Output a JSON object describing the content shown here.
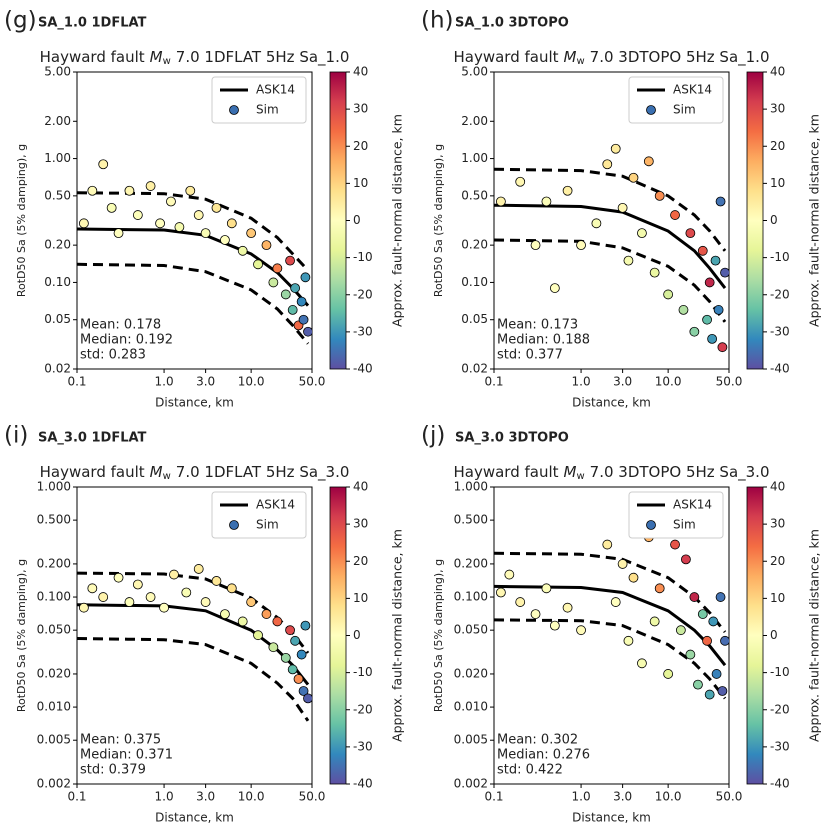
{
  "chart_data": [
    {
      "type": "scatter",
      "panel_label": "(g)",
      "panel_title": "SA_1.0 1DFLAT",
      "title_prefix": "Hayward  fault",
      "title_symbol": "M",
      "title_subscript": "w",
      "title_suffix": "7.0 1DFLAT 5Hz Sa_1.0",
      "xlabel": "Distance, km",
      "ylabel": "RotD50 Sa (5% damping), g",
      "colorbar_label": "Approx. fault-normal distance, km",
      "xscale": "log",
      "yscale": "log",
      "xlim": [
        0.1,
        50
      ],
      "xticks": [
        0.1,
        {
          "value": 1,
          "label": "1.0"
        },
        {
          "value": 3,
          "label": "3.0"
        },
        {
          "value": 10,
          "label": "10.0"
        },
        {
          "value": 50,
          "label": "50.0"
        }
      ],
      "ylim": [
        0.02,
        5
      ],
      "yticks": [
        0.02,
        0.05,
        {
          "value": 0.1,
          "label": "0.10"
        },
        {
          "value": 0.2,
          "label": "0.20"
        },
        {
          "value": 0.5,
          "label": "0.50"
        },
        {
          "value": 1,
          "label": "1.00"
        },
        {
          "value": 2,
          "label": "2.00"
        },
        {
          "value": 5,
          "label": "5.00"
        }
      ],
      "clim": [
        -40,
        40
      ],
      "cticks": [
        -40,
        -30,
        -20,
        -10,
        0,
        10,
        20,
        30,
        40
      ],
      "colormap": [
        "#5e4fa2",
        "#3288bd",
        "#66c2a5",
        "#abdda4",
        "#e6f598",
        "#ffffbf",
        "#fee08b",
        "#fdae61",
        "#f46d43",
        "#d53e4f",
        "#9e0142"
      ],
      "annotations": [
        "Mean: 0.178",
        "Median: 0.192",
        "std: 0.283"
      ],
      "legend": "upper right",
      "series": [
        {
          "name": "ASK14",
          "kind": "line",
          "color": "#000000",
          "x": [
            0.1,
            1,
            3,
            10,
            20,
            30,
            45
          ],
          "values": [
            0.27,
            0.265,
            0.24,
            0.17,
            0.12,
            0.09,
            0.065
          ]
        },
        {
          "kind": "line",
          "dash": true,
          "color": "#000000",
          "x": [
            0.1,
            1,
            3,
            10,
            20,
            30,
            45
          ],
          "values": [
            0.53,
            0.52,
            0.47,
            0.33,
            0.23,
            0.17,
            0.125
          ]
        },
        {
          "kind": "line",
          "dash": true,
          "color": "#000000",
          "x": [
            0.1,
            1,
            3,
            10,
            20,
            30,
            45
          ],
          "values": [
            0.14,
            0.137,
            0.122,
            0.087,
            0.061,
            0.045,
            0.032
          ]
        },
        {
          "name": "Sim",
          "kind": "scatter",
          "color": "#3a6fb0",
          "x": [
            0.12,
            0.15,
            0.2,
            0.25,
            0.3,
            0.4,
            0.5,
            0.7,
            0.9,
            1.2,
            1.5,
            2,
            2.5,
            3,
            4,
            5,
            6,
            8,
            10,
            12,
            15,
            18,
            20,
            25,
            28,
            30,
            32,
            35,
            38,
            40,
            42,
            45
          ],
          "values": [
            0.3,
            0.55,
            0.9,
            0.4,
            0.25,
            0.55,
            0.35,
            0.6,
            0.3,
            0.45,
            0.28,
            0.55,
            0.35,
            0.25,
            0.4,
            0.22,
            0.3,
            0.18,
            0.25,
            0.14,
            0.2,
            0.1,
            0.13,
            0.08,
            0.15,
            0.06,
            0.09,
            0.045,
            0.07,
            0.05,
            0.11,
            0.04
          ],
          "c": [
            2,
            1,
            3,
            -2,
            0,
            2,
            -1,
            4,
            0,
            1,
            -3,
            5,
            2,
            -2,
            6,
            0,
            8,
            -5,
            12,
            -8,
            15,
            -12,
            22,
            -18,
            30,
            -25,
            -28,
            25,
            -32,
            -35,
            -30,
            -38
          ]
        }
      ]
    },
    {
      "type": "scatter",
      "panel_label": "(h)",
      "panel_title": "SA_1.0 3DTOPO",
      "title_prefix": "Hayward  fault",
      "title_symbol": "M",
      "title_subscript": "w",
      "title_suffix": "7.0 3DTOPO 5Hz Sa_1.0",
      "xlabel": "Distance, km",
      "ylabel": "RotD50 Sa (5% damping), g",
      "colorbar_label": "Approx. fault-normal distance, km",
      "xscale": "log",
      "yscale": "log",
      "xlim": [
        0.1,
        50
      ],
      "xticks": [
        0.1,
        {
          "value": 1,
          "label": "1.0"
        },
        {
          "value": 3,
          "label": "3.0"
        },
        {
          "value": 10,
          "label": "10.0"
        },
        {
          "value": 50,
          "label": "50.0"
        }
      ],
      "ylim": [
        0.02,
        5
      ],
      "yticks": [
        0.02,
        0.05,
        {
          "value": 0.1,
          "label": "0.10"
        },
        {
          "value": 0.2,
          "label": "0.20"
        },
        {
          "value": 0.5,
          "label": "0.50"
        },
        {
          "value": 1,
          "label": "1.00"
        },
        {
          "value": 2,
          "label": "2.00"
        },
        {
          "value": 5,
          "label": "5.00"
        }
      ],
      "clim": [
        -40,
        40
      ],
      "cticks": [
        -40,
        -30,
        -20,
        -10,
        0,
        10,
        20,
        30,
        40
      ],
      "colormap": [
        "#5e4fa2",
        "#3288bd",
        "#66c2a5",
        "#abdda4",
        "#e6f598",
        "#ffffbf",
        "#fee08b",
        "#fdae61",
        "#f46d43",
        "#d53e4f",
        "#9e0142"
      ],
      "annotations": [
        "Mean: 0.173",
        "Median: 0.188",
        "std: 0.377"
      ],
      "legend": "upper right",
      "series": [
        {
          "name": "ASK14",
          "kind": "line",
          "color": "#000000",
          "x": [
            0.1,
            1,
            3,
            10,
            20,
            30,
            45
          ],
          "values": [
            0.42,
            0.41,
            0.37,
            0.26,
            0.18,
            0.13,
            0.09
          ]
        },
        {
          "kind": "line",
          "dash": true,
          "color": "#000000",
          "x": [
            0.1,
            1,
            3,
            10,
            20,
            30,
            45
          ],
          "values": [
            0.82,
            0.8,
            0.72,
            0.5,
            0.35,
            0.26,
            0.18
          ]
        },
        {
          "kind": "line",
          "dash": true,
          "color": "#000000",
          "x": [
            0.1,
            1,
            3,
            10,
            20,
            30,
            45
          ],
          "values": [
            0.22,
            0.215,
            0.19,
            0.135,
            0.095,
            0.07,
            0.048
          ]
        },
        {
          "name": "Sim",
          "kind": "scatter",
          "color": "#3a6fb0",
          "x": [
            0.12,
            0.2,
            0.3,
            0.4,
            0.5,
            0.7,
            1,
            1.5,
            2,
            2.5,
            3,
            3.5,
            4,
            5,
            6,
            7,
            8,
            10,
            12,
            15,
            18,
            20,
            25,
            28,
            30,
            32,
            35,
            38,
            40,
            42,
            45
          ],
          "values": [
            0.45,
            0.65,
            0.2,
            0.45,
            0.09,
            0.55,
            0.2,
            0.3,
            0.9,
            1.2,
            0.4,
            0.15,
            0.7,
            0.25,
            0.95,
            0.12,
            0.5,
            0.08,
            0.35,
            0.06,
            0.25,
            0.04,
            0.18,
            0.05,
            0.1,
            0.035,
            0.15,
            0.06,
            0.45,
            0.03,
            0.12
          ],
          "c": [
            3,
            2,
            0,
            -1,
            0,
            4,
            1,
            -2,
            6,
            5,
            2,
            -3,
            10,
            -4,
            15,
            -6,
            20,
            -10,
            25,
            -15,
            30,
            -20,
            28,
            -25,
            35,
            -30,
            -28,
            -33,
            -35,
            32,
            -38
          ]
        }
      ]
    },
    {
      "type": "scatter",
      "panel_label": "(i)",
      "panel_title": "SA_3.0 1DFLAT",
      "title_prefix": "Hayward  fault",
      "title_symbol": "M",
      "title_subscript": "w",
      "title_suffix": "7.0 1DFLAT 5Hz Sa_3.0",
      "xlabel": "Distance, km",
      "ylabel": "RotD50 Sa (5% damping), g",
      "colorbar_label": "Approx. fault-normal distance, km",
      "xscale": "log",
      "yscale": "log",
      "xlim": [
        0.1,
        50
      ],
      "xticks": [
        0.1,
        {
          "value": 1,
          "label": "1.0"
        },
        {
          "value": 3,
          "label": "3.0"
        },
        {
          "value": 10,
          "label": "10.0"
        },
        {
          "value": 50,
          "label": "50.0"
        }
      ],
      "ylim": [
        0.002,
        1
      ],
      "yticks": [
        0.002,
        0.005,
        {
          "value": 0.01,
          "label": "0.010"
        },
        {
          "value": 0.02,
          "label": "0.020"
        },
        {
          "value": 0.05,
          "label": "0.050"
        },
        {
          "value": 0.1,
          "label": "0.100"
        },
        {
          "value": 0.2,
          "label": "0.200"
        },
        {
          "value": 0.5,
          "label": "0.500"
        },
        {
          "value": 1,
          "label": "1.000"
        }
      ],
      "clim": [
        -40,
        40
      ],
      "cticks": [
        -40,
        -30,
        -20,
        -10,
        0,
        10,
        20,
        30,
        40
      ],
      "colormap": [
        "#5e4fa2",
        "#3288bd",
        "#66c2a5",
        "#abdda4",
        "#e6f598",
        "#ffffbf",
        "#fee08b",
        "#fdae61",
        "#f46d43",
        "#d53e4f",
        "#9e0142"
      ],
      "annotations": [
        "Mean: 0.375",
        "Median: 0.371",
        "std: 0.379"
      ],
      "legend": "upper right",
      "series": [
        {
          "name": "ASK14",
          "kind": "line",
          "color": "#000000",
          "x": [
            0.1,
            1,
            3,
            10,
            20,
            30,
            45
          ],
          "values": [
            0.085,
            0.083,
            0.075,
            0.05,
            0.033,
            0.024,
            0.016
          ]
        },
        {
          "kind": "line",
          "dash": true,
          "color": "#000000",
          "x": [
            0.1,
            1,
            3,
            10,
            20,
            30,
            45
          ],
          "values": [
            0.165,
            0.162,
            0.146,
            0.098,
            0.065,
            0.047,
            0.031
          ]
        },
        {
          "kind": "line",
          "dash": true,
          "color": "#000000",
          "x": [
            0.1,
            1,
            3,
            10,
            20,
            30,
            45
          ],
          "values": [
            0.042,
            0.041,
            0.037,
            0.025,
            0.0165,
            0.012,
            0.0075
          ]
        },
        {
          "name": "Sim",
          "kind": "scatter",
          "color": "#3a6fb0",
          "x": [
            0.12,
            0.15,
            0.2,
            0.3,
            0.4,
            0.5,
            0.7,
            1,
            1.3,
            1.8,
            2.5,
            3,
            4,
            5,
            6,
            8,
            10,
            12,
            15,
            18,
            20,
            25,
            28,
            30,
            32,
            35,
            38,
            40,
            42,
            45
          ],
          "values": [
            0.08,
            0.12,
            0.1,
            0.15,
            0.09,
            0.13,
            0.1,
            0.08,
            0.16,
            0.11,
            0.18,
            0.09,
            0.14,
            0.07,
            0.12,
            0.06,
            0.09,
            0.045,
            0.07,
            0.035,
            0.06,
            0.028,
            0.05,
            0.022,
            0.04,
            0.018,
            0.03,
            0.014,
            0.055,
            0.012
          ],
          "c": [
            2,
            1,
            3,
            0,
            -1,
            2,
            1,
            0,
            4,
            -2,
            5,
            1,
            6,
            -3,
            8,
            -5,
            12,
            -8,
            18,
            -12,
            25,
            -18,
            30,
            -25,
            -28,
            20,
            -32,
            -35,
            -30,
            -38
          ]
        }
      ]
    },
    {
      "type": "scatter",
      "panel_label": "(j)",
      "panel_title": "SA_3.0 3DTOPO",
      "title_prefix": "Hayward  fault",
      "title_symbol": "M",
      "title_subscript": "w",
      "title_suffix": "7.0 3DTOPO 5Hz Sa_3.0",
      "xlabel": "Distance, km",
      "ylabel": "RotD50 Sa (5% damping), g",
      "colorbar_label": "Approx. fault-normal distance, km",
      "xscale": "log",
      "yscale": "log",
      "xlim": [
        0.1,
        50
      ],
      "xticks": [
        0.1,
        {
          "value": 1,
          "label": "1.0"
        },
        {
          "value": 3,
          "label": "3.0"
        },
        {
          "value": 10,
          "label": "10.0"
        },
        {
          "value": 50,
          "label": "50.0"
        }
      ],
      "ylim": [
        0.002,
        1
      ],
      "yticks": [
        0.002,
        0.005,
        {
          "value": 0.01,
          "label": "0.010"
        },
        {
          "value": 0.02,
          "label": "0.020"
        },
        {
          "value": 0.05,
          "label": "0.050"
        },
        {
          "value": 0.1,
          "label": "0.100"
        },
        {
          "value": 0.2,
          "label": "0.200"
        },
        {
          "value": 0.5,
          "label": "0.500"
        },
        {
          "value": 1,
          "label": "1.000"
        }
      ],
      "clim": [
        -40,
        40
      ],
      "cticks": [
        -40,
        -30,
        -20,
        -10,
        0,
        10,
        20,
        30,
        40
      ],
      "colormap": [
        "#5e4fa2",
        "#3288bd",
        "#66c2a5",
        "#abdda4",
        "#e6f598",
        "#ffffbf",
        "#fee08b",
        "#fdae61",
        "#f46d43",
        "#d53e4f",
        "#9e0142"
      ],
      "annotations": [
        "Mean: 0.302",
        "Median: 0.276",
        "std: 0.422"
      ],
      "legend": "upper right",
      "series": [
        {
          "name": "ASK14",
          "kind": "line",
          "color": "#000000",
          "x": [
            0.1,
            1,
            3,
            10,
            20,
            30,
            45
          ],
          "values": [
            0.125,
            0.122,
            0.11,
            0.075,
            0.05,
            0.036,
            0.024
          ]
        },
        {
          "kind": "line",
          "dash": true,
          "color": "#000000",
          "x": [
            0.1,
            1,
            3,
            10,
            20,
            30,
            45
          ],
          "values": [
            0.25,
            0.245,
            0.22,
            0.15,
            0.1,
            0.072,
            0.048
          ]
        },
        {
          "kind": "line",
          "dash": true,
          "color": "#000000",
          "x": [
            0.1,
            1,
            3,
            10,
            20,
            30,
            45
          ],
          "values": [
            0.062,
            0.061,
            0.055,
            0.037,
            0.025,
            0.018,
            0.012
          ]
        },
        {
          "name": "Sim",
          "kind": "scatter",
          "color": "#3a6fb0",
          "x": [
            0.12,
            0.15,
            0.2,
            0.3,
            0.4,
            0.5,
            0.7,
            1,
            2,
            2.5,
            3,
            3.5,
            4,
            5,
            6,
            7,
            8,
            10,
            12,
            14,
            16,
            18,
            20,
            22,
            25,
            28,
            30,
            33,
            36,
            40,
            42,
            45
          ],
          "values": [
            0.11,
            0.16,
            0.09,
            0.07,
            0.12,
            0.055,
            0.08,
            0.05,
            0.3,
            0.09,
            0.2,
            0.04,
            0.15,
            0.025,
            0.35,
            0.06,
            0.12,
            0.02,
            0.3,
            0.05,
            0.22,
            0.03,
            0.1,
            0.016,
            0.07,
            0.04,
            0.013,
            0.06,
            0.02,
            0.1,
            0.014,
            0.04
          ],
          "c": [
            2,
            1,
            3,
            0,
            -1,
            0,
            2,
            1,
            5,
            0,
            3,
            -2,
            8,
            -3,
            15,
            -5,
            20,
            -8,
            28,
            -12,
            32,
            -18,
            35,
            -20,
            -22,
            25,
            -28,
            -30,
            -33,
            -35,
            -38,
            -36
          ]
        }
      ]
    }
  ]
}
